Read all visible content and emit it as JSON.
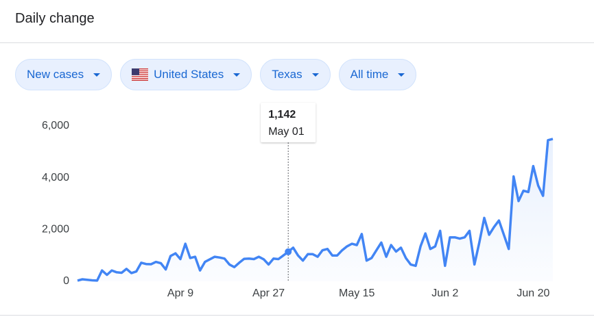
{
  "header": {
    "title": "Daily change"
  },
  "filters": [
    "New cases",
    "United States",
    "Texas",
    "All time"
  ],
  "chart_data": {
    "type": "line",
    "categories": [
      null,
      null,
      null,
      null,
      null,
      null,
      null,
      null,
      null,
      null,
      null,
      null,
      null,
      null,
      null,
      null,
      null,
      null,
      null,
      null,
      null,
      "Apr 9",
      null,
      null,
      null,
      null,
      null,
      null,
      null,
      null,
      null,
      null,
      null,
      null,
      null,
      null,
      null,
      null,
      null,
      "Apr 27",
      null,
      null,
      null,
      null,
      null,
      null,
      null,
      null,
      null,
      null,
      null,
      null,
      null,
      null,
      null,
      null,
      null,
      "May 15",
      null,
      null,
      null,
      null,
      null,
      null,
      null,
      null,
      null,
      null,
      null,
      null,
      null,
      null,
      null,
      null,
      null,
      "Jun 2",
      null,
      null,
      null,
      null,
      null,
      null,
      null,
      null,
      null,
      null,
      null,
      null,
      null,
      null,
      null,
      null,
      null,
      "Jun 20",
      null,
      null,
      null,
      null
    ],
    "values": [
      30,
      80,
      60,
      40,
      30,
      420,
      250,
      420,
      350,
      330,
      480,
      320,
      380,
      720,
      670,
      660,
      750,
      700,
      460,
      980,
      1080,
      860,
      1450,
      900,
      950,
      420,
      750,
      850,
      950,
      920,
      880,
      650,
      550,
      720,
      870,
      880,
      860,
      950,
      850,
      650,
      880,
      860,
      1000,
      1142,
      1300,
      1000,
      800,
      1050,
      1050,
      950,
      1200,
      1250,
      1000,
      1000,
      1200,
      1350,
      1450,
      1400,
      1830,
      800,
      900,
      1200,
      1500,
      950,
      1400,
      1150,
      1300,
      900,
      650,
      600,
      1350,
      1850,
      1250,
      1350,
      1950,
      600,
      1700,
      1700,
      1650,
      1700,
      1950,
      650,
      1500,
      2450,
      1800,
      2100,
      2350,
      1800,
      1250,
      4050,
      3100,
      3500,
      3450,
      4450,
      3700,
      3300,
      5450,
      5500
    ],
    "color": "#4285f4",
    "ylim": [
      0,
      6000
    ],
    "yticks": [
      0,
      {
        "value": 2000,
        "label": "2,000"
      },
      {
        "value": 4000,
        "label": "4,000"
      },
      {
        "value": 6000,
        "label": "6,000"
      }
    ],
    "grid": false,
    "tooltip": {
      "value": 1142,
      "label": "1,142",
      "date": "May 01"
    }
  }
}
